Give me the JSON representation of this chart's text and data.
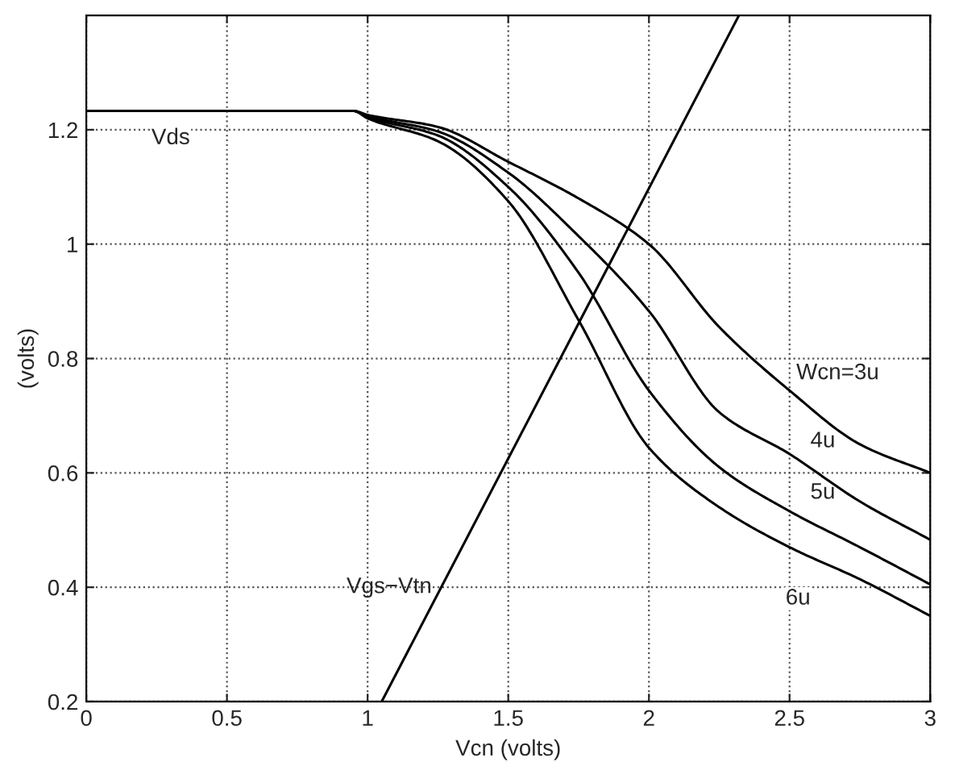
{
  "chart_data": {
    "type": "line",
    "xlabel": "Vcn (volts)",
    "ylabel": "(volts)",
    "xlim": [
      0,
      3
    ],
    "ylim": [
      0.2,
      1.4
    ],
    "xticks": [
      0,
      0.5,
      1,
      1.5,
      2,
      2.5,
      3
    ],
    "yticks": [
      0.2,
      0.4,
      0.6,
      0.8,
      1,
      1.2
    ],
    "grid": true,
    "marker": "none",
    "line_style": "solid",
    "series": [
      {
        "color": "#000000",
        "x": [
          0,
          0.95,
          1.0,
          1.25,
          1.5,
          1.75,
          2,
          2.25,
          2.5,
          2.75,
          3
        ],
        "values": [
          1.233,
          1.233,
          1.226,
          1.205,
          1.144,
          1.08,
          1.0,
          0.855,
          0.744,
          0.65,
          0.6
        ]
      },
      {
        "color": "#000000",
        "x": [
          0,
          0.95,
          1.0,
          1.25,
          1.5,
          1.75,
          2,
          2.25,
          2.5,
          2.75,
          3
        ],
        "values": [
          1.233,
          1.233,
          1.224,
          1.197,
          1.125,
          1.014,
          0.883,
          0.706,
          0.633,
          0.55,
          0.483
        ]
      },
      {
        "color": "#000000",
        "x": [
          0,
          0.95,
          1.0,
          1.25,
          1.5,
          1.75,
          2,
          2.25,
          2.5,
          2.75,
          3
        ],
        "values": [
          1.233,
          1.233,
          1.222,
          1.19,
          1.1,
          0.95,
          0.744,
          0.61,
          0.533,
          0.47,
          0.405
        ]
      },
      {
        "color": "#000000",
        "x": [
          0,
          0.95,
          1.0,
          1.25,
          1.5,
          1.75,
          2,
          2.25,
          2.5,
          2.75,
          3
        ],
        "values": [
          1.233,
          1.233,
          1.22,
          1.18,
          1.075,
          0.867,
          0.644,
          0.54,
          0.47,
          0.414,
          0.35
        ]
      },
      {
        "color": "#000000",
        "x": [
          1.05,
          2.32
        ],
        "values": [
          0.2,
          1.4
        ]
      }
    ],
    "annotations": [
      {
        "text": "Vds",
        "x": 0.3,
        "y": 1.185
      },
      {
        "text": "Vgs−Vtn",
        "x": 1.26,
        "y": 0.4
      },
      {
        "text": "Wcn=3u",
        "x": 2.5,
        "y": 0.744
      },
      {
        "text": "4u",
        "x": 2.55,
        "y": 0.625
      },
      {
        "text": "5u",
        "x": 2.55,
        "y": 0.535
      },
      {
        "text": "6u",
        "x": 2.53,
        "y": 0.38
      }
    ]
  }
}
